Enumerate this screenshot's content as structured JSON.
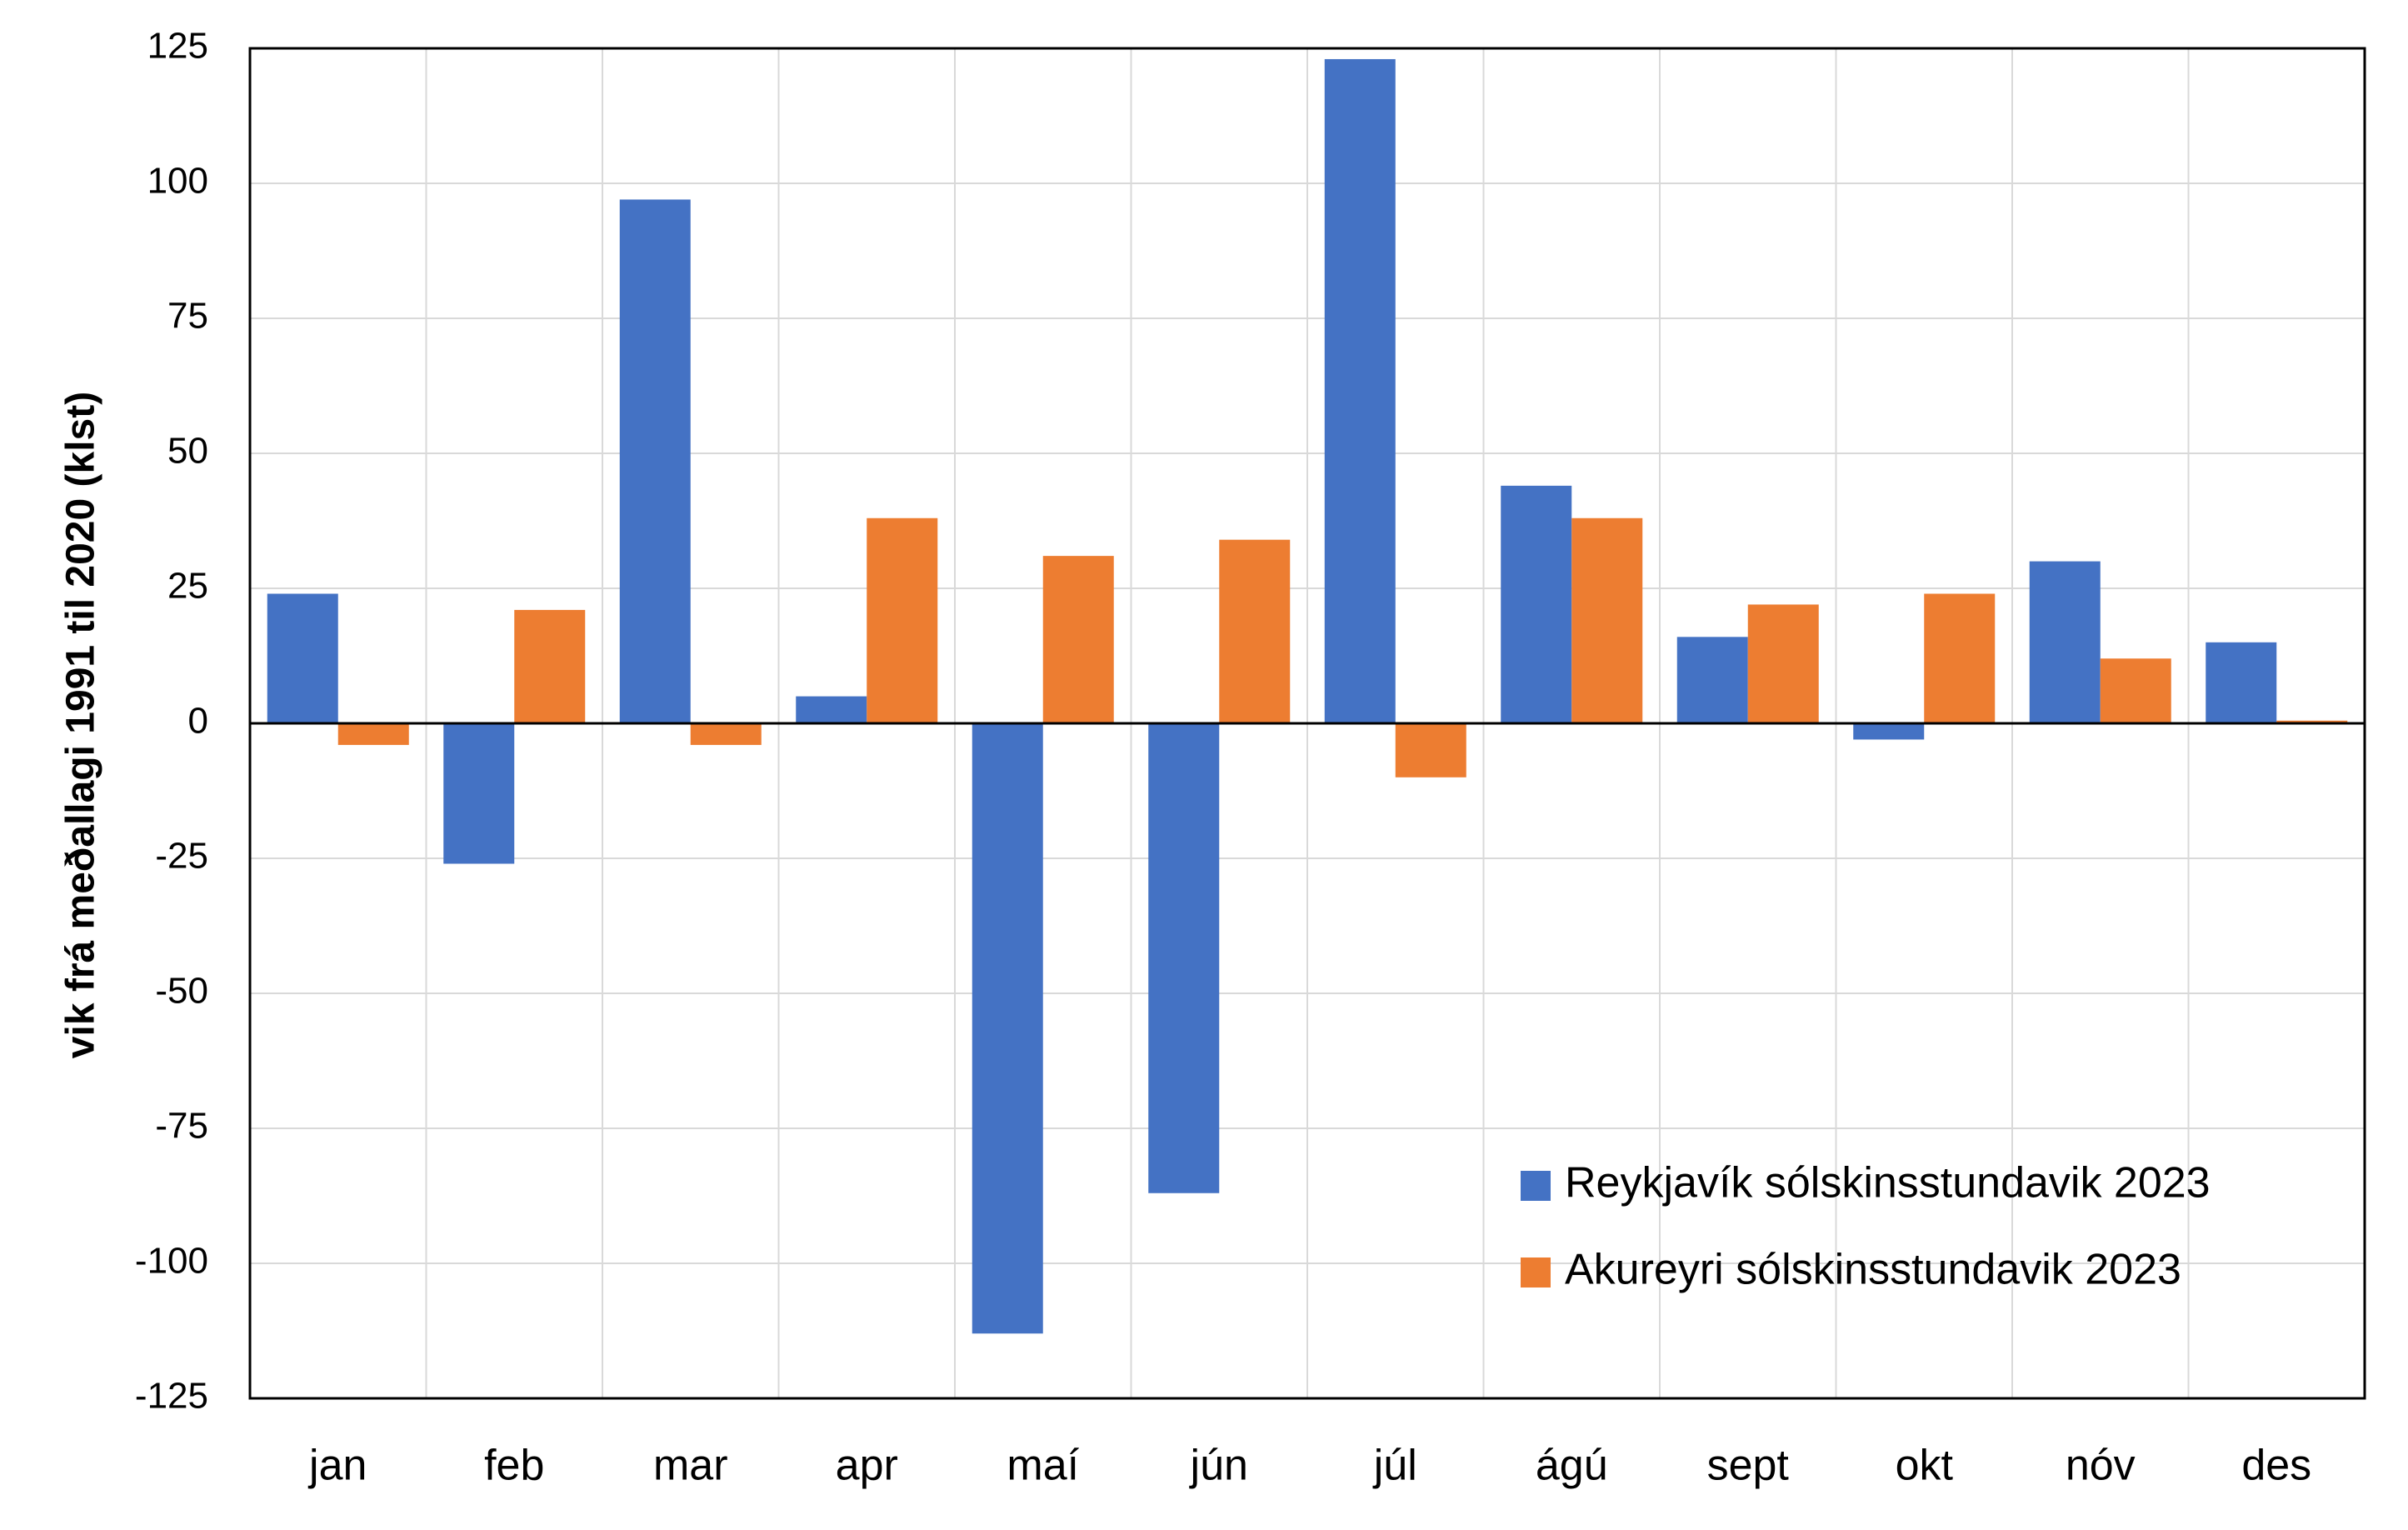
{
  "chart_data": {
    "type": "bar",
    "title": "",
    "xlabel": "",
    "ylabel": "vik frá meðallagi 1991 til 2020 (klst)",
    "ylim": [
      -125,
      125
    ],
    "yticks": [
      125,
      100,
      75,
      50,
      25,
      0,
      -25,
      -50,
      -75,
      -100,
      -125
    ],
    "grid": true,
    "legend_position": "bottom-right",
    "categories": [
      "jan",
      "feb",
      "mar",
      "apr",
      "maí",
      "jún",
      "júl",
      "ágú",
      "sept",
      "okt",
      "nóv",
      "des"
    ],
    "series": [
      {
        "name": "Reykjavík sólskinsstundavik 2023",
        "color": "#4472C4",
        "values": [
          24,
          -26,
          97,
          5,
          -113,
          -87,
          123,
          44,
          16,
          -3,
          30,
          15
        ]
      },
      {
        "name": "Akureyri sólskinsstundavik 2023",
        "color": "#ED7D31",
        "values": [
          -4,
          21,
          -4,
          38,
          31,
          34,
          -10,
          38,
          22,
          24,
          12,
          0.5
        ]
      }
    ]
  }
}
